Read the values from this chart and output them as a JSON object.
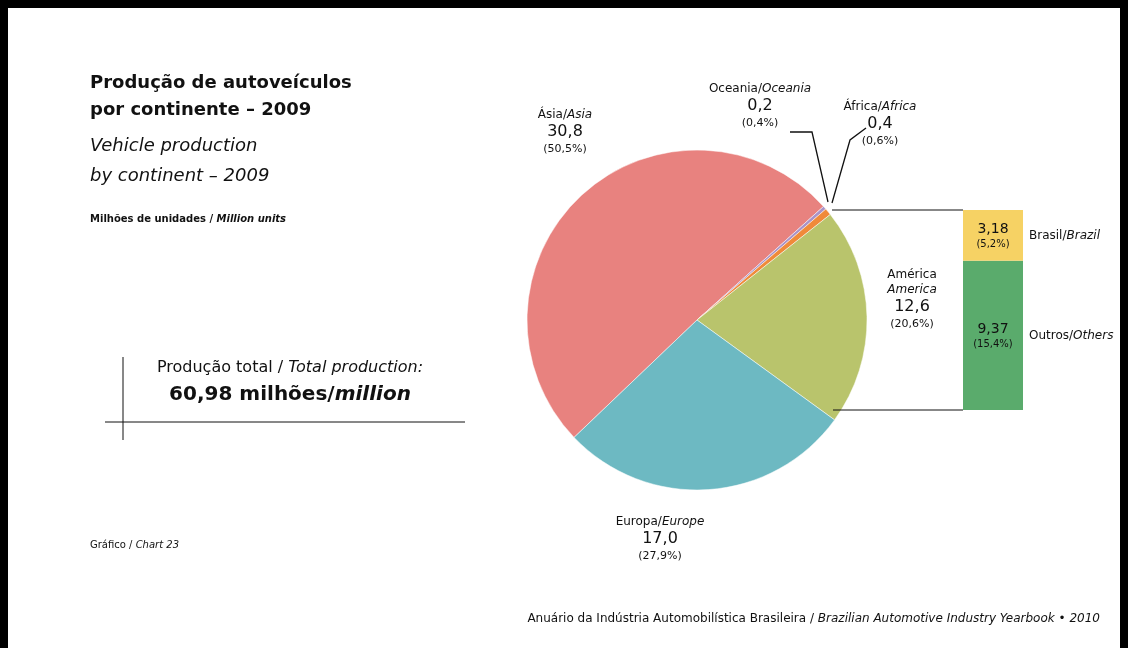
{
  "chart_data": [
    {
      "type": "pie",
      "title": "Produção de autoveículos\npor continente – 2009\nVehicle production\nby continent – 2009",
      "categories": [
        "Ásia/Asia",
        "Oceania/Oceania",
        "África/Africa",
        "América\nAmerica",
        "Europa/Europe"
      ],
      "values": [
        30.8,
        0.2,
        0.4,
        12.6,
        17.0
      ],
      "colors": [
        "#e8827f",
        "#a993c8",
        "#f08a3a",
        "#b9c46c",
        "#6db9c2"
      ],
      "value_labels": [
        "30,8\n(50,5%)",
        "0,2\n(0,4%)",
        "0,4\n(0,6%)",
        "12,6\n(20,6%)",
        "17,0\n(27,9%)"
      ],
      "annotations": [
        "Milhões de unidades / Million units",
        "Produção total / Total production:\n60,98 milhões/million",
        "Gráfico / Chart 23",
        "Anuário da Indústria Automobilística Brasileira / Brazilian Automotive Industry Yearbook • 2010"
      ]
    },
    {
      "type": "bar",
      "stacked": true,
      "categories": [
        null
      ],
      "series": [
        {
          "name": "Outros/Others",
          "color": "#5aab6c",
          "values": [
            9.37
          ],
          "value_labels": [
            "9,37\n(15,4%)"
          ]
        },
        {
          "name": "Brasil/Brazil",
          "color": "#f6d264",
          "values": [
            3.18
          ],
          "value_labels": [
            "3,18\n(5,2%)"
          ]
        }
      ]
    }
  ]
}
